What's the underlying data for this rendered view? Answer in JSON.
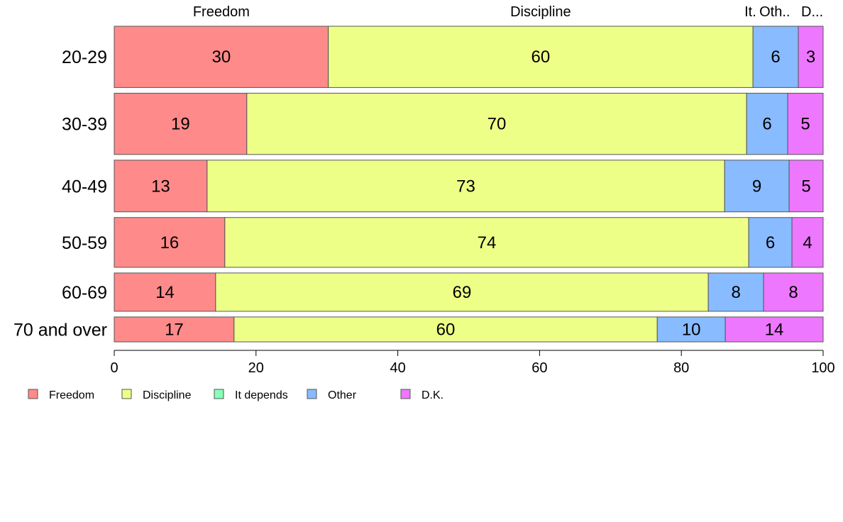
{
  "chart_data": {
    "type": "bar",
    "orientation": "horizontal",
    "stacked": true,
    "categories": [
      "20-29",
      "30-39",
      "40-49",
      "50-59",
      "60-69",
      "70 and over"
    ],
    "bar_weights": [
      32,
      32,
      27,
      26,
      20,
      13
    ],
    "series": [
      {
        "name": "Freedom",
        "color": "#ff8a8a",
        "values": [
          30.2,
          18.7,
          13.1,
          15.6,
          14.3,
          16.9
        ]
      },
      {
        "name": "Discipline",
        "color": "#eeff88",
        "values": [
          59.9,
          70.5,
          73.0,
          73.9,
          69.5,
          59.7
        ]
      },
      {
        "name": "It depends",
        "color": "#88ffbb",
        "values": [
          0,
          0,
          0,
          0,
          0,
          0
        ]
      },
      {
        "name": "Other",
        "color": "#88bbff",
        "values": [
          6.4,
          5.8,
          9.1,
          6.1,
          7.8,
          9.6
        ]
      },
      {
        "name": "D.K.",
        "color": "#ee77ff",
        "values": [
          3.5,
          5.0,
          4.8,
          4.4,
          8.4,
          13.8
        ]
      }
    ],
    "data_labels": [
      [
        "30",
        "60",
        "",
        "6",
        "3"
      ],
      [
        "19",
        "70",
        "",
        "6",
        "5"
      ],
      [
        "13",
        "73",
        "",
        "9",
        "5"
      ],
      [
        "16",
        "74",
        "",
        "6",
        "4"
      ],
      [
        "14",
        "69",
        "",
        "8",
        "8"
      ],
      [
        "17",
        "60",
        "",
        "10",
        "14"
      ]
    ],
    "top_labels": [
      "Freedom",
      "Discipline",
      "It.",
      "Oth..",
      "D..."
    ],
    "xlim": [
      0,
      100
    ],
    "xticks": [
      "0",
      "20",
      "40",
      "60",
      "80",
      "100"
    ],
    "grid": false,
    "legend_position": "bottom-left"
  }
}
